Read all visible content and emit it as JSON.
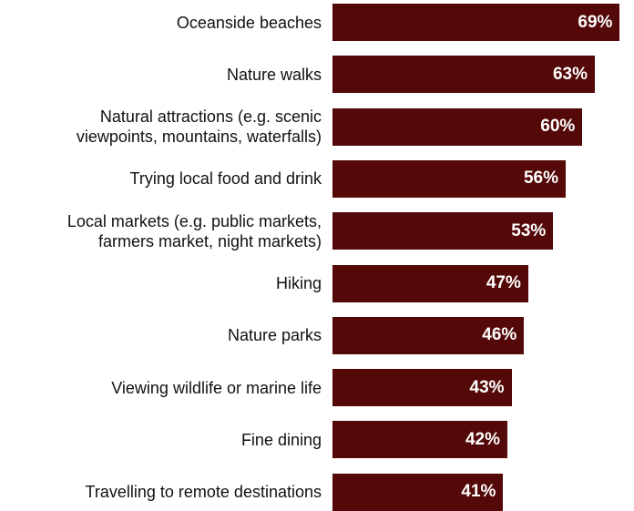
{
  "chart_data": {
    "type": "bar",
    "orientation": "horizontal",
    "categories": [
      "Oceanside beaches",
      "Nature walks",
      "Natural attractions (e.g. scenic\nviewpoints, mountains, waterfalls)",
      "Trying local food and drink",
      "Local markets (e.g. public markets,\nfarmers market, night markets)",
      "Hiking",
      "Nature parks",
      "Viewing wildlife or marine life",
      "Fine dining",
      "Travelling to remote destinations"
    ],
    "values": [
      69,
      63,
      60,
      56,
      53,
      47,
      46,
      43,
      42,
      41
    ],
    "value_labels": [
      "69%",
      "63%",
      "60%",
      "56%",
      "53%",
      "47%",
      "46%",
      "43%",
      "42%",
      "41%"
    ],
    "xlim": [
      0,
      70
    ],
    "bar_color": "#540808",
    "value_label_color": "#ffffff",
    "grid": false,
    "legend": "none"
  }
}
